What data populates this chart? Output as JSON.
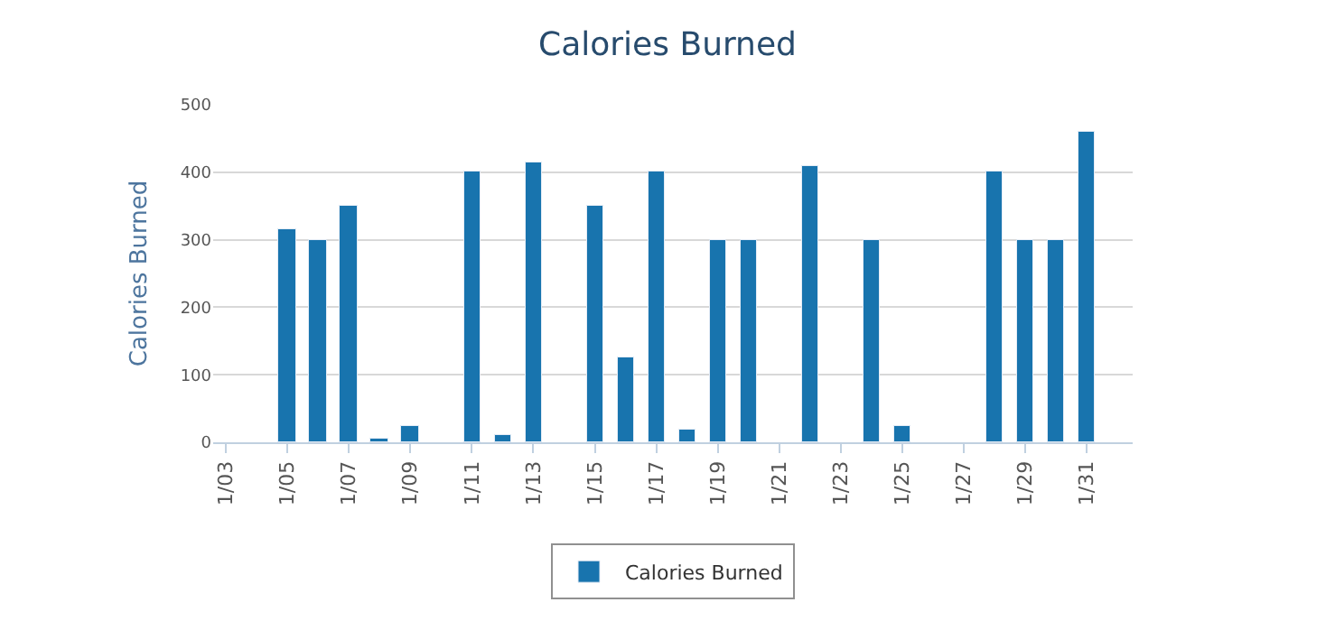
{
  "chart_data": {
    "type": "bar",
    "title": "Calories Burned",
    "ylabel": "Calories Burned",
    "x": [
      "--01-05",
      "--01-06",
      "--01-07",
      "--01-08",
      "--01-09",
      "--01-11",
      "--01-12",
      "--01-13",
      "--01-15",
      "--01-16",
      "--01-17",
      "--01-18",
      "--01-19",
      "--01-20",
      "--01-22",
      "--01-24",
      "--01-25",
      "--01-28",
      "--01-29",
      "--01-30",
      "--01-31"
    ],
    "series": [
      {
        "name": "Calories Burned",
        "color": "#1874ae",
        "values": [
          315,
          300,
          350,
          5,
          25,
          400,
          10,
          415,
          350,
          125,
          400,
          20,
          300,
          300,
          410,
          300,
          25,
          400,
          300,
          300,
          460
        ]
      }
    ],
    "xlim": [
      "--01-02T14:00",
      "--02-01T12:00"
    ],
    "xticks": [
      {
        "value": "--01-03",
        "label": "1/03"
      },
      {
        "value": "--01-05",
        "label": "1/05"
      },
      {
        "value": "--01-07",
        "label": "1/07"
      },
      {
        "value": "--01-09",
        "label": "1/09"
      },
      {
        "value": "--01-11",
        "label": "1/11"
      },
      {
        "value": "--01-13",
        "label": "1/13"
      },
      {
        "value": "--01-15",
        "label": "1/15"
      },
      {
        "value": "--01-17",
        "label": "1/17"
      },
      {
        "value": "--01-19",
        "label": "1/19"
      },
      {
        "value": "--01-21",
        "label": "1/21"
      },
      {
        "value": "--01-23",
        "label": "1/23"
      },
      {
        "value": "--01-25",
        "label": "1/25"
      },
      {
        "value": "--01-27",
        "label": "1/27"
      },
      {
        "value": "--01-29",
        "label": "1/29"
      },
      {
        "value": "--01-31",
        "label": "1/31"
      }
    ],
    "ylim": [
      0,
      500
    ],
    "yticks": [
      0,
      100,
      200,
      300,
      400,
      500
    ],
    "grid": "y",
    "legend": "bottom"
  }
}
